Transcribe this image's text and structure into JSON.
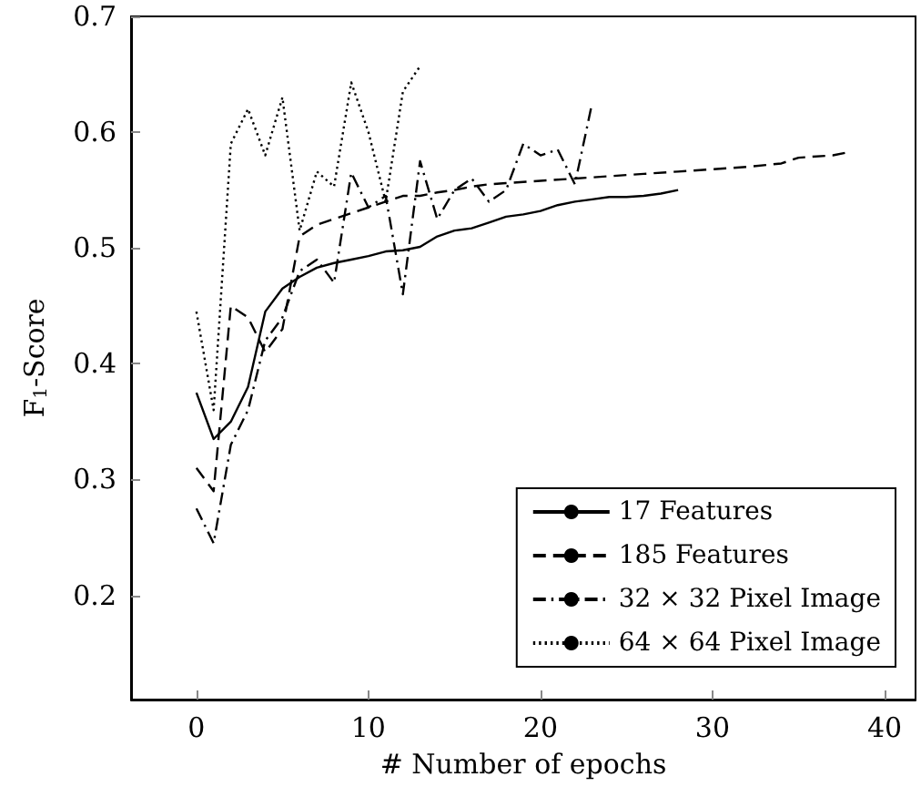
{
  "chart_data": {
    "type": "line",
    "xlabel": "# Number of epochs",
    "ylabel": "F$_{1}$-Score",
    "xlim": [
      -3.8,
      41.8
    ],
    "ylim": [
      0.11,
      0.7
    ],
    "xticks": [
      0,
      10,
      20,
      30,
      40
    ],
    "yticks": [
      0.2,
      0.3,
      0.4,
      0.5,
      0.6,
      0.7
    ],
    "grid": false,
    "legend": "bottom right",
    "marker": "none",
    "series": [
      {
        "name": "17 Features",
        "color": "#000000",
        "line_style": "solid",
        "x": [
          0,
          1,
          2,
          3,
          4,
          5,
          6,
          7,
          8,
          9,
          10,
          11,
          12,
          13,
          14,
          15,
          16,
          17,
          18,
          19,
          20,
          21,
          22,
          23,
          24,
          25,
          26,
          27,
          28
        ],
        "values": [
          0.375,
          0.335,
          0.35,
          0.38,
          0.445,
          0.465,
          0.475,
          0.483,
          0.487,
          0.49,
          0.493,
          0.497,
          0.498,
          0.501,
          0.51,
          0.515,
          0.517,
          0.522,
          0.527,
          0.529,
          0.532,
          0.537,
          0.54,
          0.542,
          0.544,
          0.544,
          0.545,
          0.547,
          0.55
        ]
      },
      {
        "name": "185 Features",
        "color": "#000000",
        "line_style": "dashed",
        "x": [
          0,
          1,
          2,
          3,
          4,
          5,
          6,
          7,
          8,
          9,
          10,
          11,
          12,
          13,
          14,
          15,
          16,
          17,
          18,
          19,
          20,
          22,
          24,
          26,
          28,
          30,
          32,
          34,
          35,
          37,
          38
        ],
        "values": [
          0.31,
          0.29,
          0.45,
          0.44,
          0.41,
          0.43,
          0.51,
          0.52,
          0.525,
          0.53,
          0.535,
          0.54,
          0.545,
          0.545,
          0.548,
          0.55,
          0.553,
          0.555,
          0.556,
          0.557,
          0.558,
          0.56,
          0.562,
          0.564,
          0.566,
          0.568,
          0.57,
          0.573,
          0.578,
          0.58,
          0.583
        ]
      },
      {
        "name": "32 × 32 Pixel Image",
        "color": "#000000",
        "line_style": "dashdot",
        "x": [
          0,
          1,
          2,
          3,
          4,
          5,
          6,
          7,
          8,
          9,
          10,
          11,
          12,
          13,
          14,
          15,
          16,
          17,
          18,
          19,
          20,
          21,
          22,
          23
        ],
        "values": [
          0.275,
          0.245,
          0.33,
          0.36,
          0.42,
          0.44,
          0.48,
          0.49,
          0.47,
          0.565,
          0.535,
          0.545,
          0.46,
          0.575,
          0.525,
          0.55,
          0.56,
          0.54,
          0.55,
          0.59,
          0.58,
          0.585,
          0.555,
          0.625
        ]
      },
      {
        "name": "64 × 64 Pixel Image",
        "color": "#000000",
        "line_style": "dotted",
        "x": [
          0,
          1,
          2,
          3,
          4,
          5,
          6,
          7,
          8,
          9,
          10,
          11,
          12,
          13
        ],
        "values": [
          0.445,
          0.36,
          0.59,
          0.62,
          0.58,
          0.63,
          0.515,
          0.566,
          0.553,
          0.643,
          0.6,
          0.54,
          0.635,
          0.657
        ]
      }
    ]
  }
}
